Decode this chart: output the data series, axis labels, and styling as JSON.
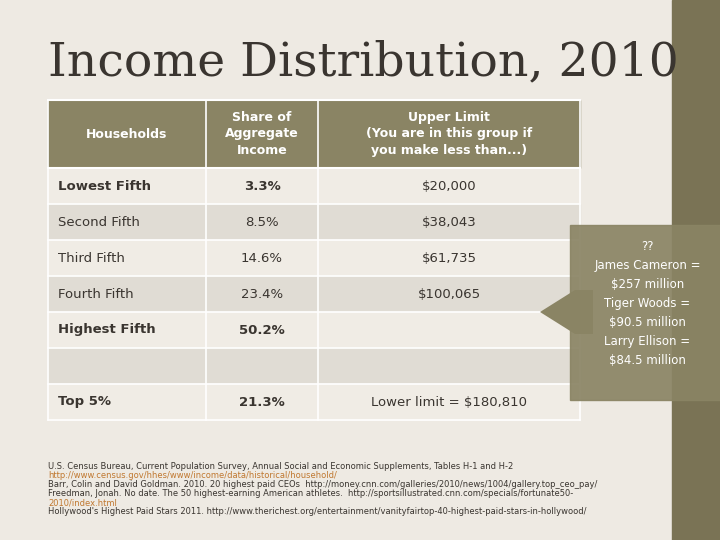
{
  "title": "Income Distribution, 2010",
  "bg_color": "#eeeae3",
  "sidebar_color": "#7a7355",
  "header_bg": "#8a8464",
  "header_text_color": "#ffffff",
  "row_alt1": "#e0dcd4",
  "row_alt2": "#f0ece5",
  "col_headers": [
    "Households",
    "Share of\nAggregate\nIncome",
    "Upper Limit\n(You are in this group if\nyou make less than...)"
  ],
  "rows": [
    [
      "Lowest Fifth",
      "3.3%",
      "$20,000"
    ],
    [
      "Second Fifth",
      "8.5%",
      "$38,043"
    ],
    [
      "Third Fifth",
      "14.6%",
      "$61,735"
    ],
    [
      "Fourth Fifth",
      "23.4%",
      "$100,065"
    ],
    [
      "Highest Fifth",
      "50.2%",
      ""
    ],
    [
      "",
      "",
      ""
    ],
    [
      "Top 5%",
      "21.3%",
      "Lower limit = $180,810"
    ]
  ],
  "bold_col0_rows": [
    0,
    4,
    6
  ],
  "bold_col1_rows": [
    0,
    4,
    6
  ],
  "sidebar_text": "??\nJames Cameron =\n$257 million\nTiger Woods =\n$90.5 million\nLarry Ellison =\n$84.5 million",
  "link_color": "#c07830",
  "text_color": "#3a3530"
}
